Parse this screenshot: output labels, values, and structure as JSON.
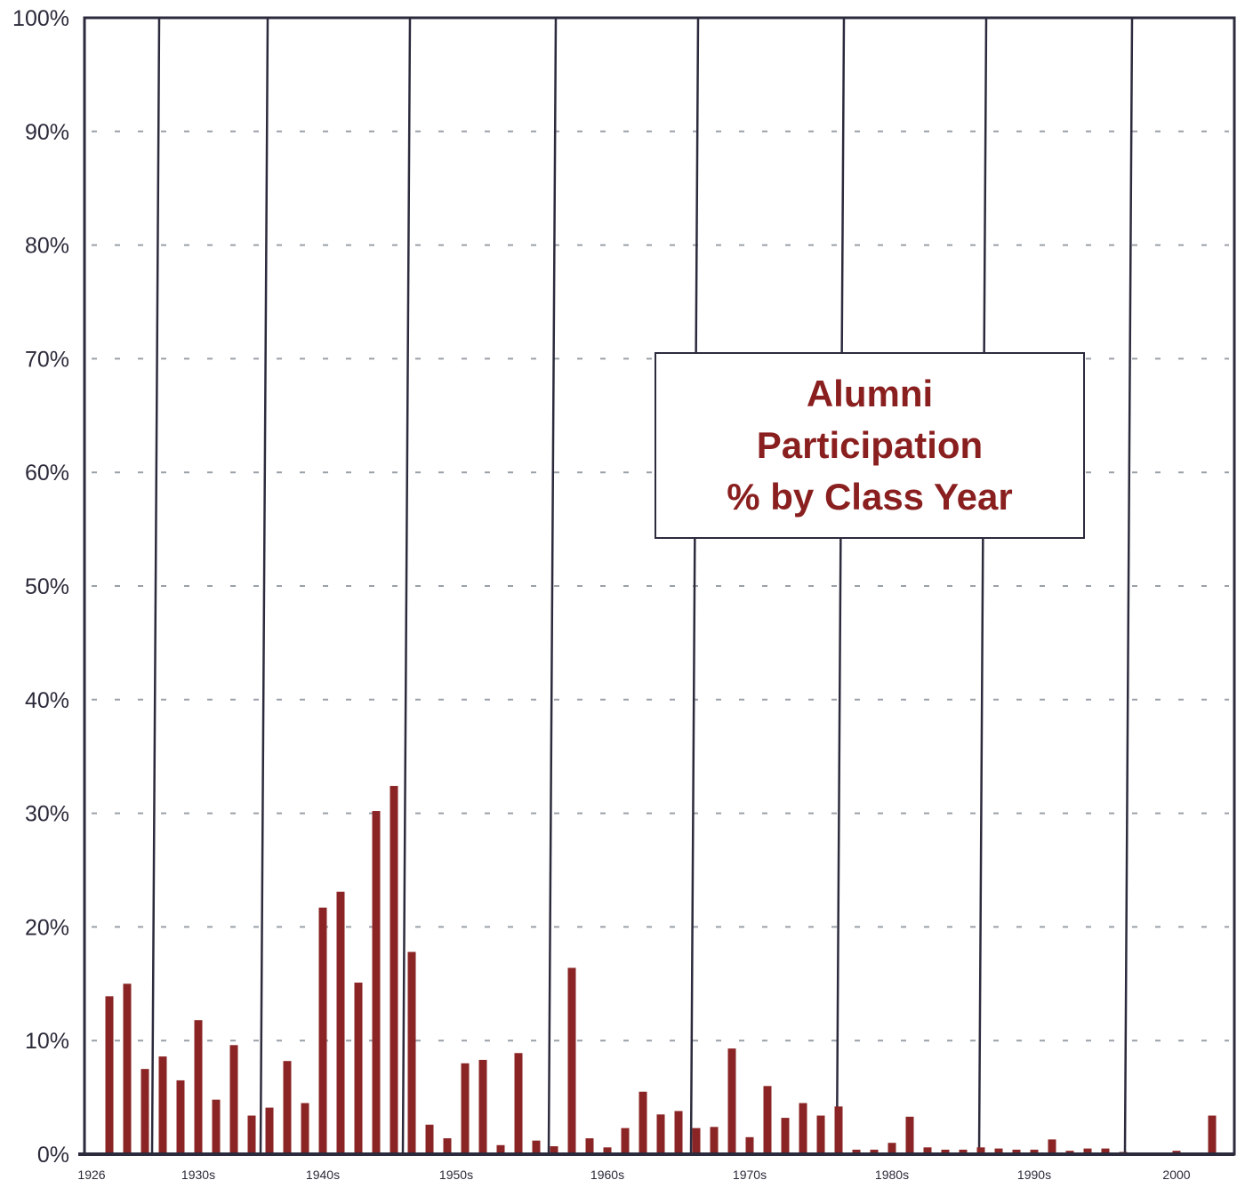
{
  "chart_data": {
    "type": "bar",
    "title": [
      "Alumni",
      "Participation",
      "% by Class Year"
    ],
    "xlabel": "",
    "ylabel": "",
    "ylim": [
      0,
      100
    ],
    "y_ticks": [
      "0%",
      "10%",
      "20%",
      "30%",
      "40%",
      "50%",
      "60%",
      "70%",
      "80%",
      "90%",
      "100%"
    ],
    "x_tick_labels": [
      {
        "label": "1926",
        "year": 1926
      },
      {
        "label": "1930s",
        "year": 1932
      },
      {
        "label": "1940s",
        "year": 1939
      },
      {
        "label": "1950s",
        "year": 1946.5
      },
      {
        "label": "1960s",
        "year": 1955
      },
      {
        "label": "1970s",
        "year": 1963
      },
      {
        "label": "1980s",
        "year": 1971
      },
      {
        "label": "1990s",
        "year": 1979
      },
      {
        "label": "2000",
        "year": 1987
      }
    ],
    "decade_dividers": [
      1929.6,
      1935.7,
      1943.7,
      1951.9,
      1959.9,
      1968.1,
      1976.1,
      1984.3
    ],
    "grid": "dashed horizontal",
    "bar_color": "#8b2525",
    "years": [
      1927,
      1928,
      1929,
      1930,
      1931,
      1932,
      1933,
      1934,
      1935,
      1936,
      1937,
      1938,
      1939,
      1940,
      1941,
      1942,
      1943,
      1944,
      1945,
      1946,
      1947,
      1948,
      1949,
      1950,
      1951,
      1952,
      1953,
      1954,
      1955,
      1956,
      1957,
      1958,
      1959,
      1960,
      1961,
      1962,
      1963,
      1964,
      1965,
      1966,
      1967,
      1968,
      1969,
      1970,
      1971,
      1972,
      1973,
      1974,
      1975,
      1976,
      1977,
      1978,
      1979,
      1980,
      1981,
      1982,
      1983,
      1984,
      1985,
      1986,
      1987,
      1988,
      1989,
      1990
    ],
    "values": [
      13.9,
      15.0,
      7.5,
      8.6,
      6.5,
      11.8,
      4.8,
      9.6,
      3.4,
      4.1,
      8.2,
      4.5,
      21.7,
      23.1,
      15.1,
      30.2,
      32.4,
      17.8,
      2.6,
      1.4,
      8.0,
      8.3,
      0.8,
      8.9,
      1.2,
      0.7,
      16.4,
      1.4,
      0.6,
      2.3,
      5.5,
      3.5,
      3.8,
      2.3,
      2.4,
      9.3,
      1.5,
      6.0,
      3.2,
      4.5,
      3.4,
      4.2,
      0.4,
      0.4,
      1.0,
      3.3,
      0.6,
      0.4,
      0.4,
      0.6,
      0.5,
      0.4,
      0.4,
      1.3,
      0.3,
      0.5,
      0.5,
      0.2,
      0.1,
      0.1,
      0.3,
      0.1,
      3.4,
      0.0
    ]
  }
}
